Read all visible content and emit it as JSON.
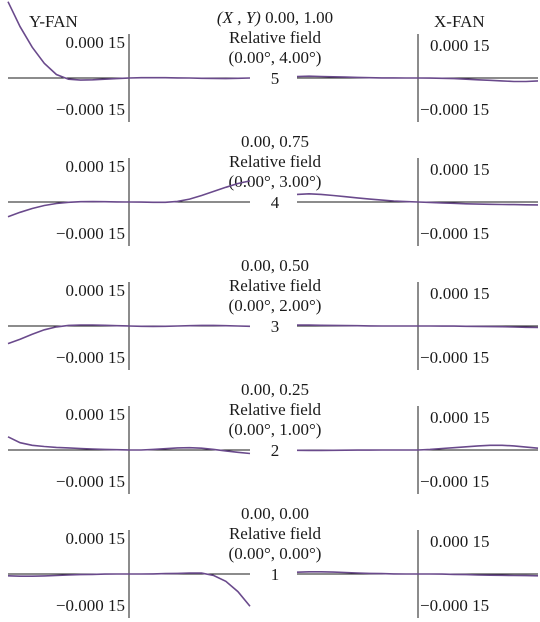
{
  "header": {
    "y_fan_label": "Y-FAN",
    "x_fan_label": "X-FAN"
  },
  "axis_tick_top": "0.000 15",
  "axis_tick_bottom": "−0.000 15",
  "colors": {
    "curve": "#6a4a8c",
    "axis": "#1a1a1a"
  },
  "chart_data": {
    "type": "line",
    "ylim": [
      -0.00015,
      0.00015
    ],
    "xlim": [
      -1,
      1
    ],
    "panels": [
      {
        "index": "5",
        "coord_prefix": "(X , Y)",
        "coords": "0.00, 1.00",
        "field_label": "Relative field",
        "field_angle": "(0.00°, 4.00°)",
        "y_fan": {
          "x": [
            -1,
            -0.9,
            -0.8,
            -0.7,
            -0.6,
            -0.5,
            -0.4,
            -0.3,
            -0.2,
            -0.1,
            0,
            0.1,
            0.2,
            0.3,
            0.4,
            0.5,
            0.6,
            0.7,
            0.8,
            0.9,
            1
          ],
          "y": [
            0.00026,
            0.000175,
            0.000105,
            5e-05,
            1.2e-05,
            -4e-06,
            -7e-06,
            -6e-06,
            -4e-06,
            -2e-06,
            0,
            1e-06,
            1e-06,
            1e-06,
            5e-07,
            0,
            -1e-06,
            -1.5e-06,
            -2e-06,
            -1e-06,
            0
          ]
        },
        "x_fan": {
          "x": [
            -1,
            -0.9,
            -0.8,
            -0.7,
            -0.6,
            -0.5,
            -0.4,
            -0.3,
            -0.2,
            -0.1,
            0,
            0.1,
            0.2,
            0.3,
            0.4,
            0.5,
            0.6,
            0.7,
            0.8,
            0.9,
            1
          ],
          "y": [
            5e-06,
            6e-06,
            5e-06,
            4e-06,
            3e-06,
            2e-06,
            1e-06,
            5e-07,
            2e-07,
            0,
            0,
            -5e-07,
            -1e-06,
            -2e-06,
            -4e-06,
            -6e-06,
            -8e-06,
            -1e-05,
            -1.2e-05,
            -1.2e-05,
            -1e-05
          ]
        }
      },
      {
        "index": "4",
        "coord_prefix": "",
        "coords": "0.00, 0.75",
        "field_label": "Relative field",
        "field_angle": "(0.00°, 3.00°)",
        "y_fan": {
          "x": [
            -1,
            -0.9,
            -0.8,
            -0.7,
            -0.6,
            -0.5,
            -0.4,
            -0.3,
            -0.2,
            -0.1,
            0,
            0.1,
            0.2,
            0.3,
            0.4,
            0.5,
            0.6,
            0.7,
            0.8,
            0.9,
            1
          ],
          "y": [
            -5e-05,
            -3.5e-05,
            -2.2e-05,
            -1.2e-05,
            -5e-06,
            -1e-06,
            1e-06,
            1.5e-06,
            1e-06,
            5e-07,
            0,
            -5e-07,
            -1e-06,
            -1e-06,
            2e-06,
            1e-05,
            2.2e-05,
            3.6e-05,
            5e-05,
            6.3e-05,
            7.2e-05
          ]
        },
        "x_fan": {
          "x": [
            -1,
            -0.9,
            -0.8,
            -0.7,
            -0.6,
            -0.5,
            -0.4,
            -0.3,
            -0.2,
            -0.1,
            0,
            0.1,
            0.2,
            0.3,
            0.4,
            0.5,
            0.6,
            0.7,
            0.8,
            0.9,
            1
          ],
          "y": [
            2.6e-05,
            2.8e-05,
            2.6e-05,
            2.2e-05,
            1.8e-05,
            1.4e-05,
            1e-05,
            6.5e-06,
            3.5e-06,
            1.2e-06,
            0,
            -1.2e-06,
            -3e-06,
            -4.5e-06,
            -6e-06,
            -7e-06,
            -8e-06,
            -8.5e-06,
            -9e-06,
            -9.5e-06,
            -1e-05
          ]
        }
      },
      {
        "index": "3",
        "coord_prefix": "",
        "coords": "0.00, 0.50",
        "field_label": "Relative field",
        "field_angle": "(0.00°, 2.00°)",
        "y_fan": {
          "x": [
            -1,
            -0.9,
            -0.8,
            -0.7,
            -0.6,
            -0.5,
            -0.4,
            -0.3,
            -0.2,
            -0.1,
            0,
            0.1,
            0.2,
            0.3,
            0.4,
            0.5,
            0.6,
            0.7,
            0.8,
            0.9,
            1
          ],
          "y": [
            -6e-05,
            -4.5e-05,
            -2.8e-05,
            -1.3e-05,
            -3e-06,
            2e-06,
            3.5e-06,
            3.5e-06,
            2.5e-06,
            1e-06,
            0,
            -1e-06,
            -1.5e-06,
            -1e-06,
            0,
            1e-06,
            2e-06,
            2e-06,
            1e-06,
            0,
            -1e-06
          ]
        },
        "x_fan": {
          "x": [
            -1,
            -0.9,
            -0.8,
            -0.7,
            -0.6,
            -0.5,
            -0.4,
            -0.3,
            -0.2,
            -0.1,
            0,
            0.1,
            0.2,
            0.3,
            0.4,
            0.5,
            0.6,
            0.7,
            0.8,
            0.9,
            1
          ],
          "y": [
            3e-06,
            3e-06,
            2.5e-06,
            2e-06,
            1.5e-06,
            1e-06,
            5e-07,
            0,
            0,
            0,
            0,
            0,
            -2e-07,
            -5e-07,
            -1e-06,
            -1.5e-06,
            -2e-06,
            -2.5e-06,
            -3.5e-06,
            -4.5e-06,
            -5e-06
          ]
        }
      },
      {
        "index": "2",
        "coord_prefix": "",
        "coords": "0.00, 0.25",
        "field_label": "Relative field",
        "field_angle": "(0.00°, 1.00°)",
        "y_fan": {
          "x": [
            -1,
            -0.9,
            -0.8,
            -0.7,
            -0.6,
            -0.5,
            -0.4,
            -0.3,
            -0.2,
            -0.1,
            0,
            0.1,
            0.2,
            0.3,
            0.4,
            0.5,
            0.6,
            0.7,
            0.8,
            0.9,
            1
          ],
          "y": [
            4.5e-05,
            2.5e-05,
            1.6e-05,
            1.2e-05,
            9e-06,
            7e-06,
            5e-06,
            3.5e-06,
            2e-06,
            1e-06,
            0,
            0,
            2e-06,
            4.5e-06,
            7e-06,
            8e-06,
            6e-06,
            2e-06,
            -3e-06,
            -8e-06,
            -1.2e-05
          ]
        },
        "x_fan": {
          "x": [
            -1,
            -0.9,
            -0.8,
            -0.7,
            -0.6,
            -0.5,
            -0.4,
            -0.3,
            -0.2,
            -0.1,
            0,
            0.1,
            0.2,
            0.3,
            0.4,
            0.5,
            0.6,
            0.7,
            0.8,
            0.9,
            1
          ],
          "y": [
            -1e-06,
            -1.5e-06,
            -1.5e-06,
            -1e-06,
            -8e-07,
            -5e-07,
            -3e-07,
            -1e-07,
            0,
            0,
            0,
            2e-06,
            5e-06,
            8e-06,
            1.1e-05,
            1.4e-05,
            1.6e-05,
            1.6e-05,
            1.4e-05,
            1e-05,
            6e-06
          ]
        }
      },
      {
        "index": "1",
        "coord_prefix": "",
        "coords": "0.00, 0.00",
        "field_label": "Relative field",
        "field_angle": "(0.00°, 0.00°)",
        "y_fan": {
          "x": [
            -1,
            -0.9,
            -0.8,
            -0.7,
            -0.6,
            -0.5,
            -0.4,
            -0.3,
            -0.2,
            -0.1,
            0,
            0.1,
            0.2,
            0.3,
            0.4,
            0.5,
            0.6,
            0.7,
            0.8,
            0.9,
            1
          ],
          "y": [
            -6e-06,
            -7.5e-06,
            -7.5e-06,
            -6.5e-06,
            -5e-06,
            -3.5e-06,
            -2.2e-06,
            -1.2e-06,
            -5e-07,
            -1e-07,
            0,
            1e-07,
            5e-07,
            1.2e-06,
            2.2e-06,
            3.5e-06,
            3e-06,
            -5e-06,
            -2.5e-05,
            -6e-05,
            -0.00011
          ]
        },
        "x_fan": {
          "x": [
            -1,
            -0.9,
            -0.8,
            -0.7,
            -0.6,
            -0.5,
            -0.4,
            -0.3,
            -0.2,
            -0.1,
            0,
            0.1,
            0.2,
            0.3,
            0.4,
            0.5,
            0.6,
            0.7,
            0.8,
            0.9,
            1
          ],
          "y": [
            6e-06,
            7.5e-06,
            7.5e-06,
            6.5e-06,
            5e-06,
            3.5e-06,
            2.2e-06,
            1.2e-06,
            5e-07,
            1e-07,
            0,
            -1e-07,
            -5e-07,
            -1.2e-06,
            -2.2e-06,
            -3.5e-06,
            -4e-06,
            -4.5e-06,
            -5e-06,
            -5.5e-06,
            -6e-06
          ]
        }
      }
    ]
  }
}
